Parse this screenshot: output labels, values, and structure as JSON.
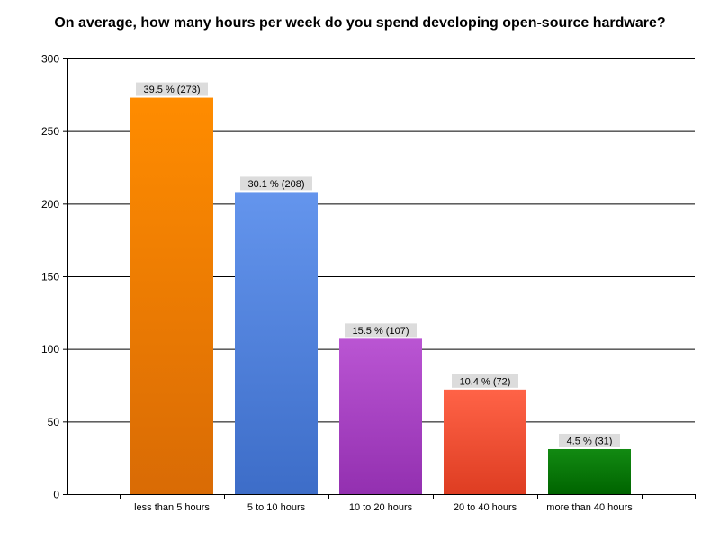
{
  "chart_data": {
    "type": "bar",
    "title": "On average, how many hours per week do you spend developing open-source hardware?",
    "xlabel": "",
    "ylabel": "",
    "ylim": [
      0,
      300
    ],
    "yticks": [
      0,
      50,
      100,
      150,
      200,
      250,
      300
    ],
    "grid": true,
    "legend": "none",
    "categories": [
      "less than 5 hours",
      "5 to 10 hours",
      "10 to 20 hours",
      "20 to 40 hours",
      "more than 40 hours"
    ],
    "values": [
      273,
      208,
      107,
      72,
      31
    ],
    "data_labels": [
      "39.5 % (273)",
      "30.1 % (208)",
      "15.5 % (107)",
      "10.4 % (72)",
      "4.5 % (31)"
    ],
    "colors": [
      [
        "#ff8c00",
        "#d96b05"
      ],
      [
        "#6495ed",
        "#3d6dc8"
      ],
      [
        "#ba55d3",
        "#9330b0"
      ],
      [
        "#ff6347",
        "#de3d22"
      ],
      [
        "#128a12",
        "#006400"
      ]
    ]
  }
}
